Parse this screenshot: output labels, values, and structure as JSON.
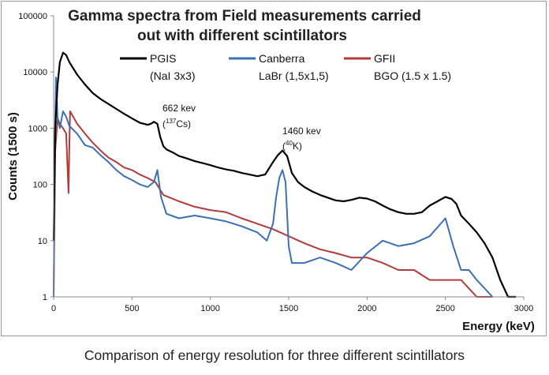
{
  "caption": "Comparison of energy resolution for three different scintillators",
  "chart_data": {
    "type": "line",
    "title_lines": [
      "Gamma spectra from Field measurements carried",
      "out with different scintillators"
    ],
    "xlabel": "Energy (keV)",
    "ylabel": "Counts (1500 s)",
    "xlim": [
      0,
      3000
    ],
    "ylim": [
      1,
      100000
    ],
    "yscale": "log",
    "xticks": [
      0,
      500,
      1000,
      1500,
      2000,
      2500,
      3000
    ],
    "yticks": [
      1,
      10,
      100,
      1000,
      10000,
      100000
    ],
    "xtick_labels": [
      "0",
      "500",
      "1000",
      "1500",
      "2000",
      "2500",
      "3000"
    ],
    "ytick_labels": [
      "1",
      "10",
      "100",
      "1000",
      "10000",
      "100000"
    ],
    "grid": false,
    "legend_position": "top",
    "legend": [
      {
        "name": "PGIS",
        "sub": "(NaI 3x3)",
        "color": "#000000"
      },
      {
        "name": "Canberra",
        "sub": "LaBr (1,5x1,5)",
        "color": "#3b6fb6"
      },
      {
        "name": "GFII",
        "sub": "BGO (1.5 x 1.5)",
        "color": "#b33a3a"
      }
    ],
    "annotations": [
      {
        "text": "662 kev",
        "iso_mass": "137",
        "iso_symbol": "Cs",
        "x": 662
      },
      {
        "text": "1460 kev",
        "iso_mass": "40",
        "iso_symbol": "K",
        "x": 1460
      }
    ],
    "series": [
      {
        "name": "PGIS",
        "color": "#000000",
        "x": [
          0,
          10,
          25,
          40,
          60,
          80,
          100,
          150,
          200,
          250,
          300,
          350,
          400,
          450,
          500,
          550,
          600,
          620,
          640,
          662,
          680,
          700,
          720,
          760,
          800,
          850,
          900,
          950,
          1000,
          1050,
          1100,
          1150,
          1200,
          1250,
          1300,
          1350,
          1400,
          1430,
          1460,
          1490,
          1520,
          1560,
          1600,
          1650,
          1700,
          1750,
          1800,
          1850,
          1900,
          1950,
          2000,
          2050,
          2100,
          2150,
          2200,
          2250,
          2300,
          2350,
          2400,
          2450,
          2500,
          2540,
          2570,
          2600,
          2650,
          2700,
          2750,
          2800,
          2850,
          2900,
          2950
        ],
        "y": [
          10,
          1000,
          6000,
          15000,
          22000,
          20000,
          15000,
          9000,
          6000,
          4200,
          3300,
          2700,
          2200,
          1800,
          1500,
          1250,
          1150,
          1200,
          1300,
          1200,
          700,
          480,
          420,
          370,
          320,
          290,
          260,
          240,
          220,
          200,
          185,
          175,
          160,
          150,
          140,
          150,
          250,
          330,
          400,
          320,
          160,
          110,
          90,
          75,
          65,
          58,
          52,
          50,
          53,
          58,
          56,
          50,
          42,
          36,
          32,
          30,
          30,
          32,
          42,
          50,
          60,
          55,
          45,
          28,
          20,
          14,
          9,
          5,
          2,
          1,
          1
        ]
      },
      {
        "name": "Canberra",
        "color": "#3b6fb6",
        "x": [
          0,
          8,
          15,
          25,
          40,
          60,
          80,
          100,
          150,
          200,
          250,
          300,
          350,
          400,
          450,
          500,
          550,
          600,
          640,
          662,
          685,
          720,
          800,
          900,
          1000,
          1100,
          1200,
          1300,
          1360,
          1400,
          1420,
          1440,
          1460,
          1480,
          1500,
          1520,
          1600,
          1700,
          1800,
          1900,
          2000,
          2100,
          2200,
          2300,
          2400,
          2500,
          2550,
          2600,
          2650,
          2700,
          2800
        ],
        "y": [
          1,
          600,
          8000,
          1500,
          1000,
          2000,
          1600,
          1100,
          800,
          500,
          450,
          330,
          250,
          180,
          140,
          120,
          100,
          90,
          110,
          180,
          60,
          30,
          25,
          28,
          25,
          22,
          18,
          14,
          10,
          20,
          60,
          130,
          180,
          110,
          8,
          4,
          4,
          5,
          4,
          3,
          6,
          10,
          8,
          9,
          12,
          25,
          8,
          3,
          3,
          2,
          1
        ]
      },
      {
        "name": "GFII",
        "color": "#b33a3a",
        "x": [
          0,
          10,
          25,
          40,
          60,
          80,
          95,
          100,
          105,
          115,
          150,
          200,
          250,
          300,
          350,
          400,
          450,
          500,
          550,
          600,
          650,
          700,
          800,
          900,
          1000,
          1100,
          1200,
          1300,
          1400,
          1500,
          1600,
          1700,
          1800,
          1900,
          2000,
          2100,
          2200,
          2300,
          2400,
          2500,
          2600,
          2700,
          2800
        ],
        "y": [
          1,
          400,
          1500,
          1200,
          1000,
          800,
          70,
          500,
          2000,
          1800,
          1200,
          800,
          550,
          400,
          300,
          250,
          200,
          180,
          150,
          130,
          110,
          65,
          50,
          40,
          35,
          32,
          25,
          20,
          16,
          12,
          9,
          7,
          6,
          5,
          5,
          4,
          3,
          3,
          2,
          2,
          2,
          1,
          1
        ]
      }
    ]
  }
}
